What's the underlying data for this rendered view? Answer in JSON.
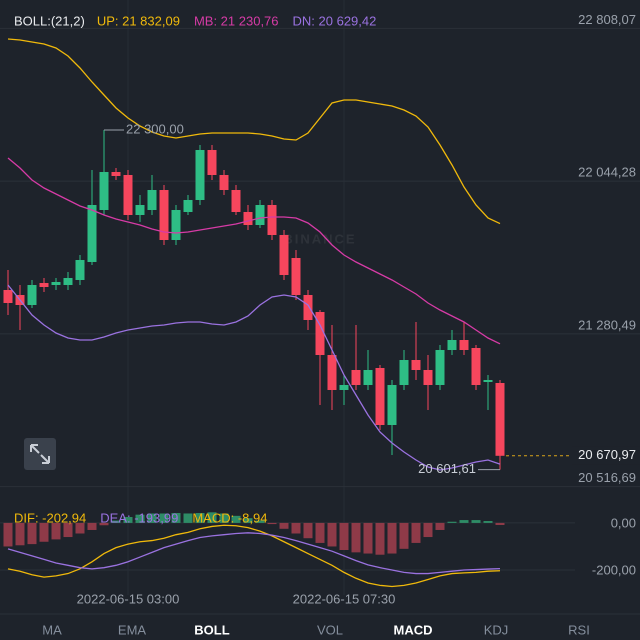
{
  "chart_data": [
    {
      "type": "candlestick",
      "indicator": "BOLL:(21,2)",
      "watermark": "BINANCE",
      "up_color": "#2ebd85",
      "down_color": "#f6465d",
      "ylim": [
        20450,
        22950
      ],
      "yticks": [
        {
          "value": 22808.07,
          "label": "22 808,07"
        },
        {
          "value": 22044.28,
          "label": "22 044,28"
        },
        {
          "value": 21280.49,
          "label": "21 280,49"
        },
        {
          "value": 20516.69,
          "label": "20 516,69"
        }
      ],
      "grid": true,
      "high_label": "22 300,00",
      "low_label": "20 601,61",
      "last_label": "20 670,97",
      "ohlc": [
        [
          21500,
          21600,
          21375,
          21435
        ],
        [
          21475,
          21525,
          21300,
          21425
        ],
        [
          21425,
          21550,
          21410,
          21525
        ],
        [
          21535,
          21560,
          21490,
          21515
        ],
        [
          21525,
          21560,
          21500,
          21540
        ],
        [
          21525,
          21590,
          21500,
          21560
        ],
        [
          21550,
          21675,
          21525,
          21650
        ],
        [
          21640,
          22100,
          21625,
          21925
        ],
        [
          21900,
          22300,
          21875,
          22090
        ],
        [
          22090,
          22110,
          22050,
          22070
        ],
        [
          22075,
          22100,
          21850,
          21875
        ],
        [
          21875,
          21975,
          21840,
          21925
        ],
        [
          21900,
          22075,
          21875,
          22000
        ],
        [
          22000,
          22025,
          21725,
          21750
        ],
        [
          21750,
          21925,
          21725,
          21900
        ],
        [
          21890,
          21975,
          21875,
          21950
        ],
        [
          21950,
          22225,
          21925,
          22200
        ],
        [
          22200,
          22225,
          22050,
          22075
        ],
        [
          22075,
          22100,
          21975,
          22000
        ],
        [
          22000,
          22025,
          21875,
          21890
        ],
        [
          21890,
          21925,
          21800,
          21825
        ],
        [
          21825,
          21950,
          21810,
          21925
        ],
        [
          21925,
          21950,
          21750,
          21775
        ],
        [
          21775,
          21800,
          21550,
          21575
        ],
        [
          21660,
          21700,
          21450,
          21475
        ],
        [
          21475,
          21500,
          21300,
          21350
        ],
        [
          21390,
          21400,
          20925,
          21175
        ],
        [
          21175,
          21325,
          20900,
          21000
        ],
        [
          21000,
          21075,
          20925,
          21025
        ],
        [
          21100,
          21325,
          21000,
          21025
        ],
        [
          21025,
          21200,
          21000,
          21100
        ],
        [
          21110,
          21125,
          20800,
          20825
        ],
        [
          20825,
          21050,
          20675,
          21025
        ],
        [
          21025,
          21200,
          21000,
          21150
        ],
        [
          21150,
          21340,
          21050,
          21100
        ],
        [
          21100,
          21175,
          20900,
          21025
        ],
        [
          21025,
          21225,
          21000,
          21200
        ],
        [
          21200,
          21300,
          21175,
          21250
        ],
        [
          21250,
          21340,
          21175,
          21200
        ],
        [
          21210,
          21225,
          21000,
          21025
        ],
        [
          21040,
          21075,
          20900,
          21050
        ],
        [
          21035,
          21050,
          20601.61,
          20670.97
        ]
      ],
      "overlays": [
        {
          "name": "UP",
          "legend": "UP: 21 832,09",
          "color": "#f0b90b",
          "values": [
            22755,
            22750,
            22740,
            22730,
            22710,
            22670,
            22610,
            22540,
            22475,
            22410,
            22360,
            22320,
            22290,
            22270,
            22260,
            22270,
            22280,
            22285,
            22285,
            22285,
            22285,
            22280,
            22270,
            22255,
            22250,
            22285,
            22360,
            22435,
            22450,
            22450,
            22440,
            22430,
            22420,
            22400,
            22370,
            22315,
            22225,
            22125,
            22015,
            21925,
            21860,
            21832.09
          ]
        },
        {
          "name": "MB",
          "legend": "MB: 21 230,76",
          "color": "#d63ba6",
          "values": [
            22160,
            22110,
            22050,
            22010,
            21980,
            21950,
            21920,
            21900,
            21875,
            21855,
            21840,
            21825,
            21805,
            21790,
            21785,
            21790,
            21800,
            21810,
            21820,
            21830,
            21845,
            21860,
            21865,
            21865,
            21860,
            21835,
            21790,
            21725,
            21675,
            21640,
            21610,
            21580,
            21550,
            21515,
            21480,
            21435,
            21400,
            21370,
            21340,
            21300,
            21260,
            21230.76
          ]
        },
        {
          "name": "DN",
          "legend": "DN: 20 629,42",
          "color": "#9a72e0",
          "values": [
            21525,
            21450,
            21375,
            21325,
            21285,
            21260,
            21250,
            21250,
            21265,
            21285,
            21300,
            21310,
            21320,
            21325,
            21335,
            21340,
            21340,
            21330,
            21325,
            21340,
            21370,
            21425,
            21465,
            21475,
            21465,
            21425,
            21325,
            21200,
            21075,
            20975,
            20875,
            20790,
            20735,
            20690,
            20650,
            20615,
            20600,
            20610,
            20625,
            20640,
            20650,
            20629.42
          ]
        }
      ]
    },
    {
      "type": "macd",
      "ylim": [
        -306,
        76
      ],
      "yticks": [
        {
          "value": 0,
          "label": "0,00"
        },
        {
          "value": -200,
          "label": "-200,00"
        }
      ],
      "grid": true,
      "categories": [
        null,
        null,
        null,
        null,
        null,
        null,
        null,
        null,
        null,
        null,
        "2022-06-15 03:00",
        null,
        null,
        null,
        null,
        null,
        null,
        null,
        null,
        null,
        null,
        null,
        null,
        null,
        null,
        null,
        null,
        null,
        "2022-06-15 07:30",
        null,
        null,
        null,
        null,
        null,
        null,
        null,
        null,
        null,
        null,
        null,
        null,
        null
      ],
      "series": [
        {
          "name": "DIF",
          "legend": "DIF: -202,94",
          "color": "#f0b90b",
          "values": [
            -195,
            -205,
            -220,
            -230,
            -225,
            -215,
            -195,
            -165,
            -130,
            -105,
            -90,
            -80,
            -75,
            -65,
            -50,
            -40,
            -25,
            -15,
            -10,
            -12,
            -20,
            -35,
            -55,
            -80,
            -105,
            -130,
            -155,
            -180,
            -210,
            -235,
            -255,
            -265,
            -270,
            -265,
            -255,
            -240,
            -225,
            -215,
            -212,
            -210,
            -205,
            -202.94
          ]
        },
        {
          "name": "DEA",
          "legend": "DEA: -193,99",
          "color": "#9a72e0",
          "values": [
            -110,
            -125,
            -140,
            -155,
            -170,
            -180,
            -190,
            -195,
            -190,
            -180,
            -165,
            -145,
            -125,
            -105,
            -90,
            -75,
            -62,
            -55,
            -50,
            -45,
            -42,
            -45,
            -52,
            -62,
            -75,
            -90,
            -105,
            -120,
            -140,
            -160,
            -178,
            -190,
            -200,
            -210,
            -215,
            -215,
            -210,
            -205,
            -200,
            -198,
            -196,
            -193.99
          ]
        },
        {
          "name": "MACD",
          "legend": "MACD: -8,94",
          "color": "#f0b90b",
          "pos_color": "#2e8c66",
          "neg_color": "#8e3a48",
          "values": [
            -100,
            -95,
            -90,
            -80,
            -70,
            -60,
            -45,
            -30,
            -10,
            10,
            25,
            35,
            40,
            40,
            42,
            40,
            42,
            45,
            40,
            30,
            20,
            10,
            -5,
            -25,
            -45,
            -65,
            -85,
            -100,
            -115,
            -125,
            -130,
            -135,
            -130,
            -110,
            -85,
            -60,
            -30,
            5,
            12,
            12,
            8,
            -8.94
          ]
        }
      ]
    }
  ],
  "tabs": [
    {
      "label": "MA",
      "selected": false
    },
    {
      "label": "EMA",
      "selected": false
    },
    {
      "label": "BOLL",
      "selected": true
    },
    {
      "label": "VOL",
      "selected": false
    },
    {
      "label": "MACD",
      "selected": true
    },
    {
      "label": "KDJ",
      "selected": false
    },
    {
      "label": "RSI",
      "selected": false
    }
  ]
}
